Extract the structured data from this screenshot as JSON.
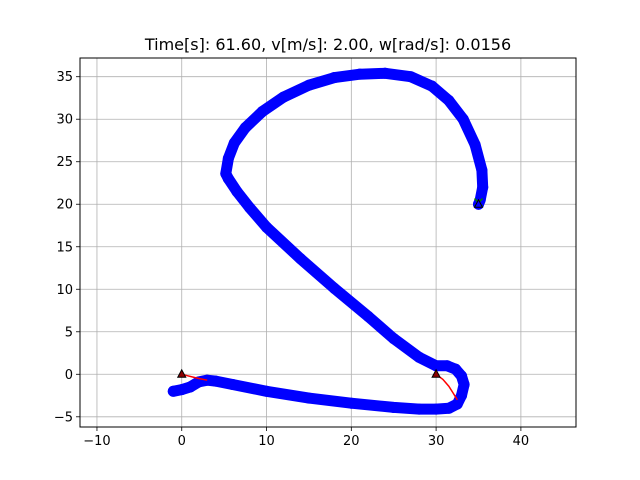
{
  "chart_data": {
    "type": "line",
    "title": "Time[s]: 61.60, v[m/s]: 2.00, w[rad/s]: 0.0156",
    "xlabel": "",
    "ylabel": "",
    "xlim": [
      -12,
      46.5
    ],
    "ylim": [
      -6.2,
      37.2
    ],
    "xticks": [
      -10,
      0,
      10,
      20,
      30,
      40
    ],
    "yticks": [
      -5,
      0,
      5,
      10,
      15,
      20,
      25,
      30,
      35
    ],
    "grid": true,
    "series": [
      {
        "style": "thick-dots",
        "color": "#0000ff",
        "x": [
          -1.0,
          0.0,
          1.0,
          2.0,
          3.0,
          4.0,
          6.0,
          10.0,
          15.0,
          20.0,
          25.0,
          28.0,
          30.0,
          31.5,
          32.5,
          33.0,
          33.3,
          33.0,
          32.3,
          31.3,
          30.0,
          28.0,
          25.0,
          22.0,
          18.0,
          14.0,
          10.0,
          8.0,
          6.5,
          5.5,
          5.2,
          5.5,
          6.2,
          7.5,
          9.5,
          12.0,
          15.0,
          18.0,
          21.0,
          24.0,
          27.0,
          29.5,
          31.5,
          33.2,
          34.6,
          35.4,
          35.5,
          35.2,
          35.0
        ],
        "y": [
          -2.0,
          -1.8,
          -1.5,
          -0.9,
          -0.7,
          -0.8,
          -1.2,
          -2.0,
          -2.8,
          -3.4,
          -3.9,
          -4.1,
          -4.1,
          -4.0,
          -3.5,
          -2.5,
          -1.2,
          -0.2,
          0.6,
          1.0,
          1.0,
          2.0,
          4.2,
          6.8,
          10.1,
          13.6,
          17.3,
          19.6,
          21.5,
          23.0,
          23.6,
          25.4,
          27.2,
          29.0,
          30.9,
          32.6,
          34.0,
          34.9,
          35.3,
          35.4,
          35.0,
          33.9,
          32.2,
          30.0,
          27.0,
          24.0,
          22.0,
          20.5,
          20.0
        ]
      },
      {
        "style": "line",
        "color": "#ff0000",
        "x": [
          0.0,
          2.0,
          3.0
        ],
        "y": [
          0.0,
          -0.5,
          -0.7
        ]
      },
      {
        "style": "line",
        "color": "#ff0000",
        "x": [
          30.0,
          30.8,
          31.5,
          32.0,
          32.5
        ],
        "y": [
          0.0,
          -0.6,
          -1.4,
          -2.2,
          -3.0
        ]
      }
    ],
    "markers": [
      {
        "shape": "triangle",
        "color": "#000000",
        "fill": "#8b0000",
        "x": 0.0,
        "y": 0.0
      },
      {
        "shape": "triangle",
        "color": "#000000",
        "fill": "#8b0000",
        "x": 30.0,
        "y": 0.0
      },
      {
        "shape": "x",
        "color": "#008000",
        "x": 35.0,
        "y": 20.2
      },
      {
        "shape": "triangle",
        "color": "#000000",
        "fill": "#0000ff",
        "x": 35.0,
        "y": 20.0
      }
    ]
  }
}
